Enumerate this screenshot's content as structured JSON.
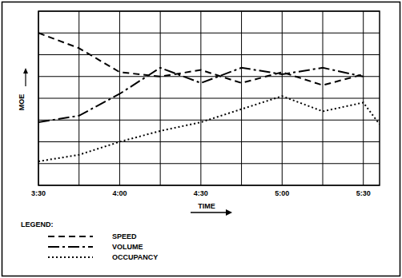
{
  "chart_data": {
    "type": "line",
    "x_label": "TIME",
    "y_label": "MOE",
    "legend_title": "LEGEND:",
    "x": [
      3.5,
      3.75,
      4.0,
      4.25,
      4.5,
      4.75,
      5.0,
      5.25,
      5.5,
      5.6
    ],
    "series": [
      {
        "name": "SPEED",
        "color": "#000000",
        "line_style": "dashed",
        "values": [
          7.0,
          6.3,
          5.2,
          5.0,
          5.3,
          4.7,
          5.2,
          4.6,
          5.1,
          null
        ]
      },
      {
        "name": "VOLUME",
        "color": "#000000",
        "line_style": "dash-dot",
        "values": [
          2.9,
          3.2,
          4.2,
          5.4,
          4.7,
          5.4,
          5.1,
          5.4,
          5.0,
          null
        ]
      },
      {
        "name": "OCCUPANCY",
        "color": "#000000",
        "line_style": "dotted",
        "values": [
          1.1,
          1.4,
          2.0,
          2.5,
          2.9,
          3.5,
          4.1,
          3.4,
          3.8,
          2.8
        ]
      }
    ],
    "xlim": [
      3.5,
      5.6
    ],
    "xticks": [
      {
        "value": 3.5,
        "label": "3:30"
      },
      {
        "value": 4.0,
        "label": "4:00"
      },
      {
        "value": 4.5,
        "label": "4:30"
      },
      {
        "value": 5.0,
        "label": "5:00"
      },
      {
        "value": 5.5,
        "label": "5:30"
      }
    ],
    "ylim": [
      0,
      8
    ],
    "yticks": [
      0,
      1,
      2,
      3,
      4,
      5,
      6,
      7,
      8
    ],
    "grid": true,
    "tick_labels": "x",
    "legend": "bottom-left"
  }
}
